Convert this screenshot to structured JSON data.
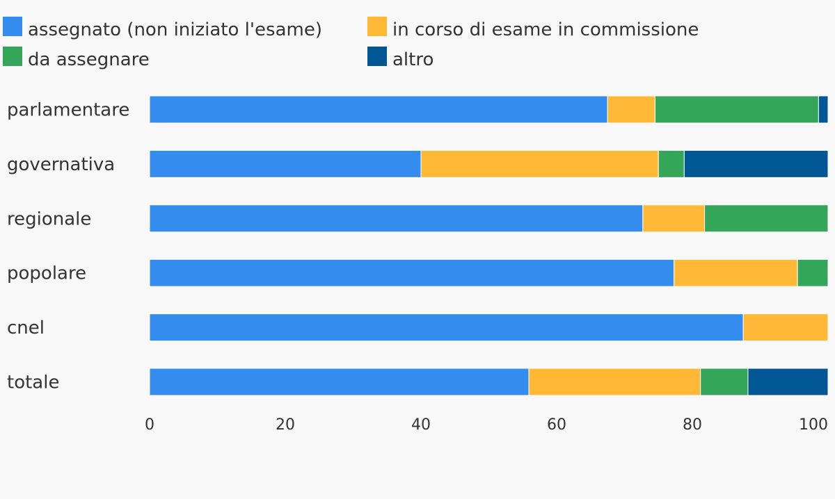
{
  "chart_data": {
    "type": "bar",
    "orientation": "horizontal",
    "stacked": true,
    "categories": [
      "parlamentare",
      "governativa",
      "regionale",
      "popolare",
      "cnel",
      "totale"
    ],
    "series": [
      {
        "name": "assegnato (non iniziato l'esame)",
        "color": "#338CEE",
        "values": [
          67.5,
          40.0,
          72.7,
          77.3,
          87.5,
          55.9
        ]
      },
      {
        "name": "in corso di esame in commissione",
        "color": "#FFB937",
        "values": [
          7.0,
          35.0,
          9.1,
          18.2,
          12.5,
          25.3
        ]
      },
      {
        "name": "da assegnare",
        "color": "#33A65A",
        "values": [
          24.1,
          3.8,
          18.2,
          4.5,
          0.0,
          7.0
        ]
      },
      {
        "name": "altro",
        "color": "#015694",
        "values": [
          1.4,
          21.2,
          0.0,
          0.0,
          0.0,
          11.8
        ]
      }
    ],
    "xticks": [
      "0",
      "20",
      "40",
      "60",
      "80",
      "100"
    ],
    "xlim": [
      0,
      100
    ],
    "legend_position": "top",
    "grid": false
  }
}
